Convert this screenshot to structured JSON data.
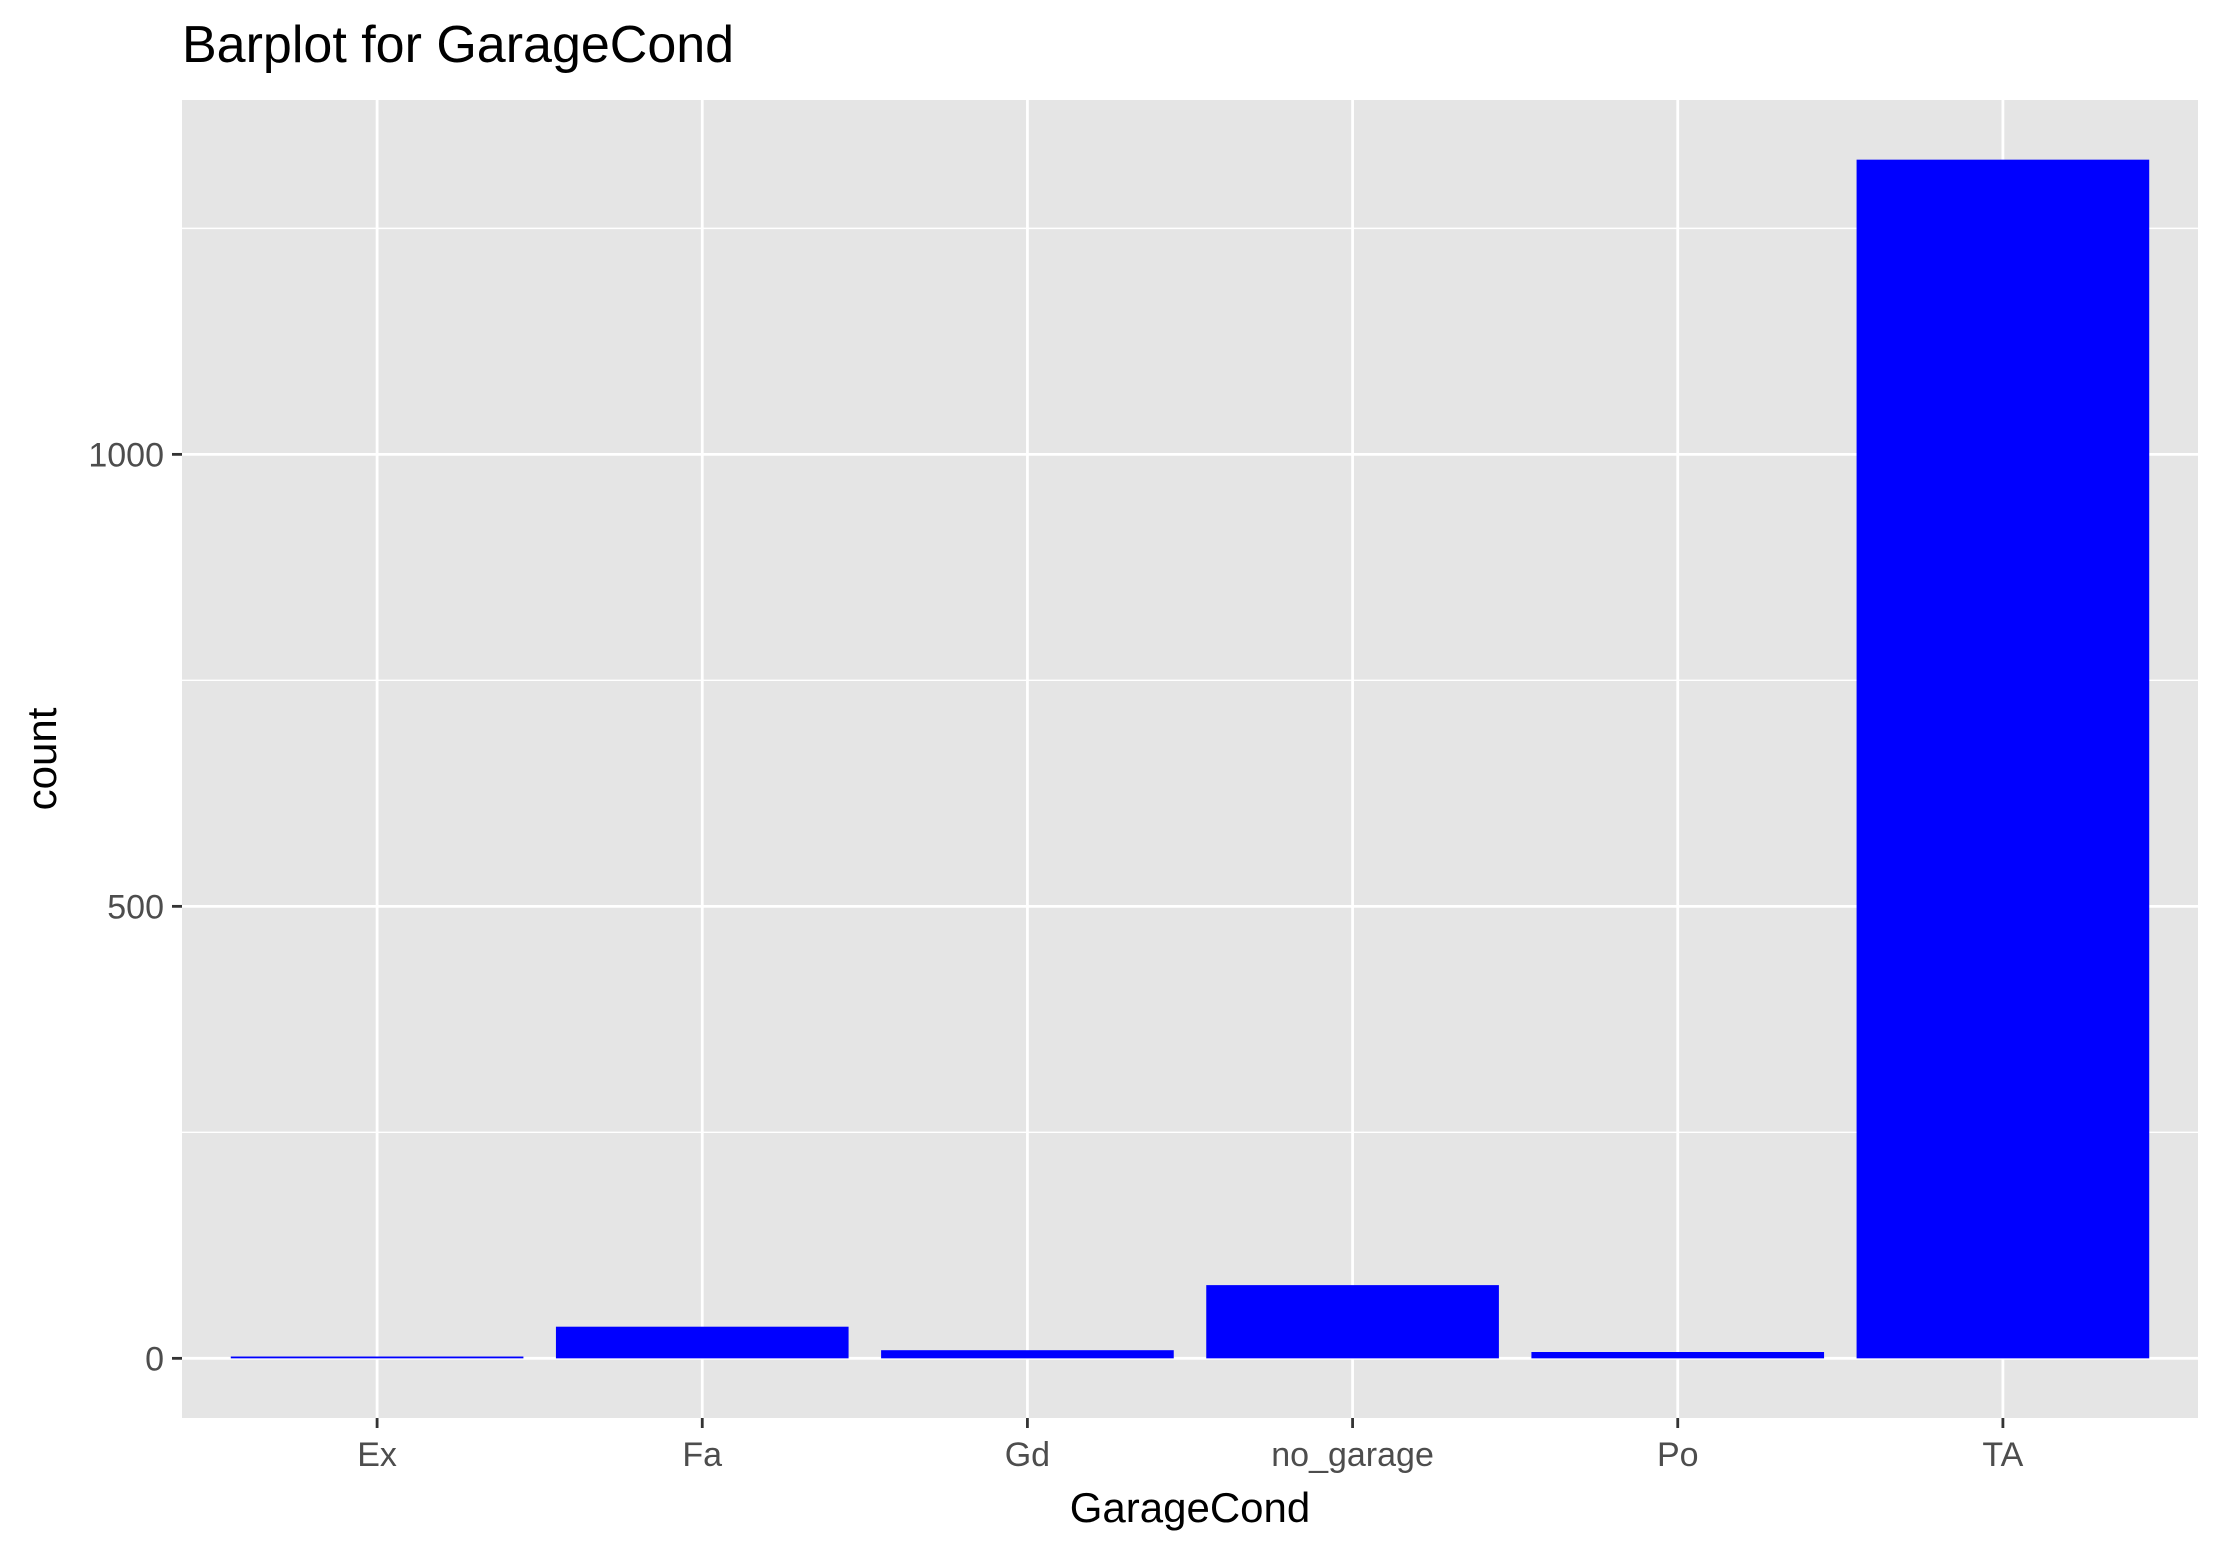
{
  "chart_data": {
    "type": "bar",
    "title": "Barplot for GarageCond",
    "xlabel": "GarageCond",
    "ylabel": "count",
    "categories": [
      "Ex",
      "Fa",
      "Gd",
      "no_garage",
      "Po",
      "TA"
    ],
    "values": [
      2,
      35,
      9,
      81,
      7,
      1326
    ],
    "y_ticks": [
      0,
      500,
      1000
    ],
    "ylim": [
      -66,
      1392
    ],
    "grid": true,
    "legend": "none",
    "bar_color": "#0000ff",
    "panel_background": "#e5e5e5",
    "grid_color": "#ffffff"
  }
}
